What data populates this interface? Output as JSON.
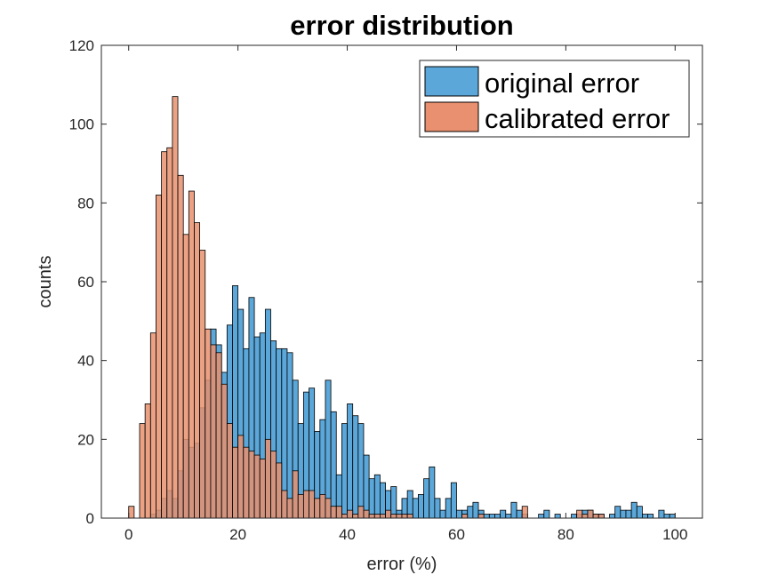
{
  "chart_data": {
    "type": "histogram",
    "title": "error distribution",
    "xlabel": "error (%)",
    "ylabel": "counts",
    "xlim": [
      -5,
      105
    ],
    "ylim": [
      0,
      120
    ],
    "xticks": [
      0,
      20,
      40,
      60,
      80,
      100
    ],
    "xtick_labels": [
      "0",
      "20",
      "40",
      "60",
      "80",
      "100"
    ],
    "yticks": [
      0,
      20,
      40,
      60,
      80,
      100,
      120
    ],
    "ytick_labels": [
      "0",
      "20",
      "40",
      "60",
      "80",
      "100",
      "120"
    ],
    "grid": false,
    "legend_position": "top-right",
    "bin_width": 1,
    "bin_start": 0,
    "series": [
      {
        "name": "original error",
        "color": "#5ba7d9",
        "values": [
          0,
          0,
          0,
          0,
          1,
          2,
          5,
          7,
          5,
          12,
          20,
          18,
          19,
          28,
          35,
          48,
          44,
          37,
          49,
          59,
          53,
          43,
          56,
          46,
          47,
          53,
          45,
          43,
          43,
          42,
          35,
          24,
          32,
          33,
          22,
          25,
          35,
          27,
          11,
          24,
          29,
          26,
          24,
          16,
          10,
          11,
          9,
          7,
          8,
          2,
          5,
          7,
          5,
          6,
          10,
          13,
          5,
          2,
          5,
          9,
          2,
          2,
          3,
          4,
          2,
          1,
          1,
          1,
          2,
          1,
          4,
          2,
          1,
          0,
          0,
          1,
          2,
          0,
          1,
          0,
          0,
          1,
          1,
          2,
          2,
          1,
          1,
          0,
          1,
          3,
          2,
          2,
          4,
          3,
          1,
          1,
          0,
          2,
          1,
          1
        ]
      },
      {
        "name": "calibrated error",
        "color": "#e8906f",
        "values": [
          3,
          0,
          24,
          29,
          47,
          82,
          93,
          94,
          107,
          87,
          72,
          83,
          75,
          68,
          48,
          44,
          42,
          34,
          24,
          18,
          21,
          18,
          17,
          16,
          15,
          20,
          17,
          14,
          7,
          5,
          12,
          6,
          7,
          7,
          5,
          6,
          5,
          3,
          3,
          1,
          2,
          1,
          3,
          2,
          1,
          1,
          1,
          2,
          1,
          1,
          1,
          1,
          0,
          0,
          0,
          0,
          0,
          0,
          0,
          0,
          0,
          1,
          0,
          0,
          1,
          0,
          0,
          0,
          0,
          0,
          0,
          0,
          3,
          0,
          0,
          0,
          0,
          0,
          0,
          0,
          0,
          0,
          2,
          1,
          2,
          1,
          1,
          0,
          0,
          0,
          0,
          0,
          0,
          0,
          0,
          0,
          0,
          0,
          0,
          0
        ]
      }
    ]
  }
}
